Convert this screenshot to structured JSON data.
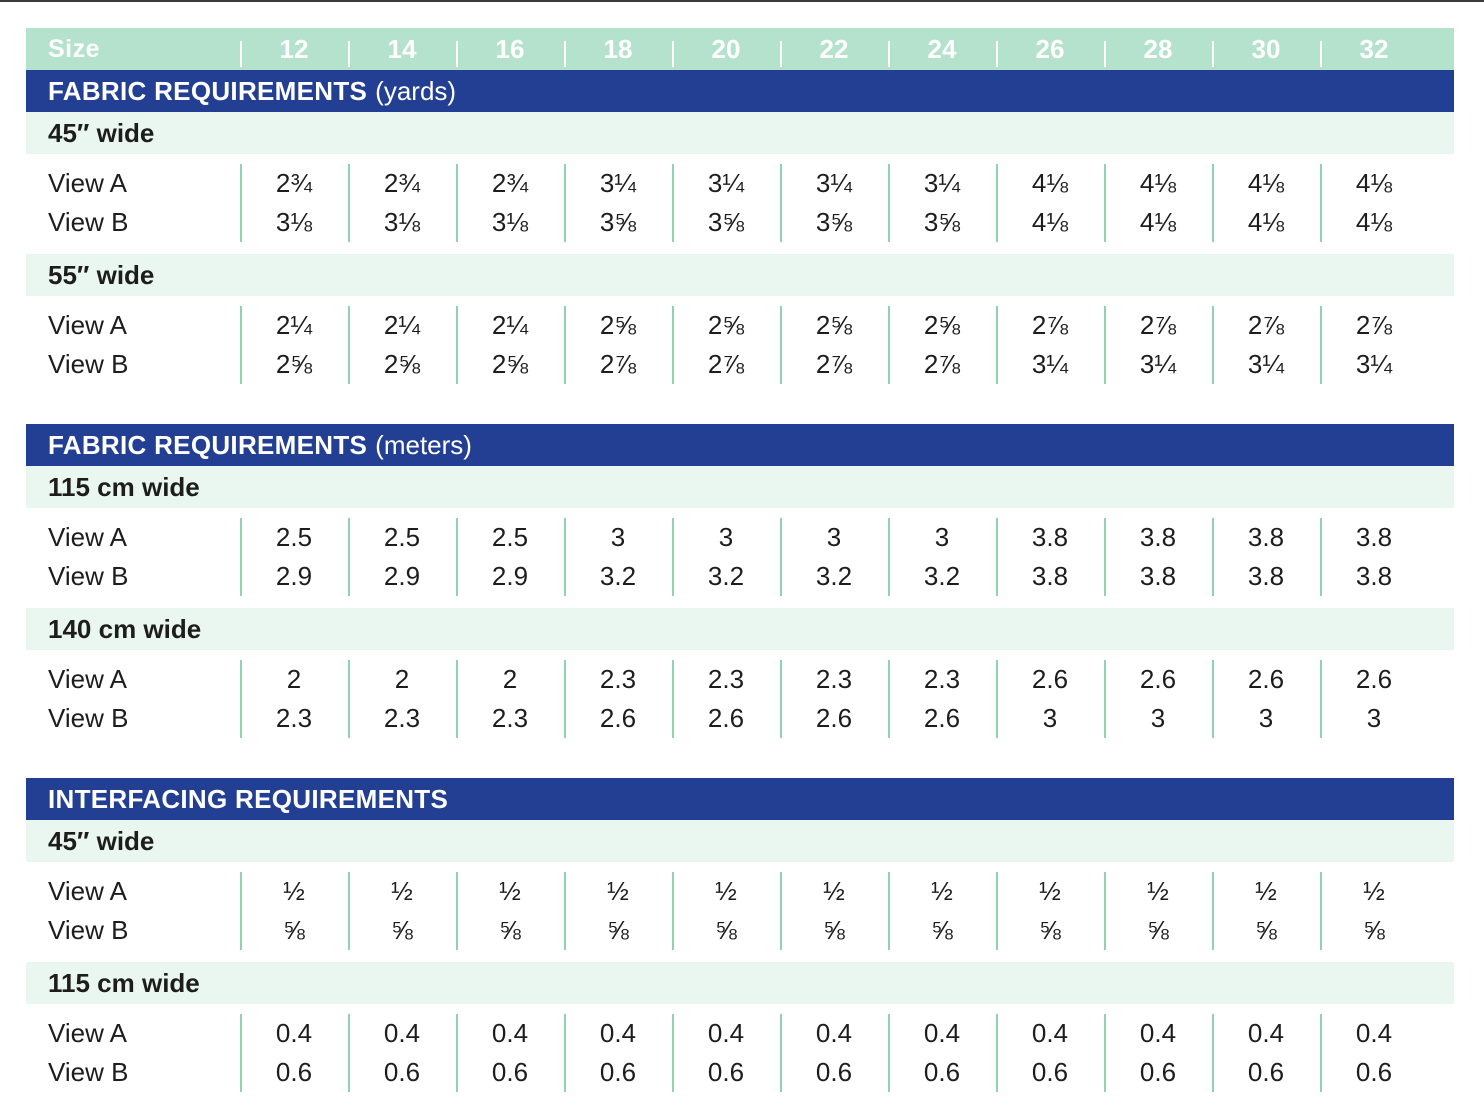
{
  "header": {
    "label": "Size",
    "sizes": [
      "12",
      "14",
      "16",
      "18",
      "20",
      "22",
      "24",
      "26",
      "28",
      "30",
      "32"
    ]
  },
  "sections": [
    {
      "title": "FABRIC REQUIREMENTS",
      "unit": "(yards)",
      "groups": [
        {
          "title": "45″ wide",
          "rows": [
            {
              "label": "View A",
              "values": [
                "2¾",
                "2¾",
                "2¾",
                "3¼",
                "3¼",
                "3¼",
                "3¼",
                "4⅛",
                "4⅛",
                "4⅛",
                "4⅛"
              ]
            },
            {
              "label": "View B",
              "values": [
                "3⅛",
                "3⅛",
                "3⅛",
                "3⅝",
                "3⅝",
                "3⅝",
                "3⅝",
                "4⅛",
                "4⅛",
                "4⅛",
                "4⅛"
              ]
            }
          ]
        },
        {
          "title": "55″ wide",
          "rows": [
            {
              "label": "View A",
              "values": [
                "2¼",
                "2¼",
                "2¼",
                "2⅝",
                "2⅝",
                "2⅝",
                "2⅝",
                "2⅞",
                "2⅞",
                "2⅞",
                "2⅞"
              ]
            },
            {
              "label": "View B",
              "values": [
                "2⅝",
                "2⅝",
                "2⅝",
                "2⅞",
                "2⅞",
                "2⅞",
                "2⅞",
                "3¼",
                "3¼",
                "3¼",
                "3¼"
              ]
            }
          ]
        }
      ]
    },
    {
      "title": "FABRIC REQUIREMENTS",
      "unit": "(meters)",
      "groups": [
        {
          "title": "115 cm wide",
          "rows": [
            {
              "label": "View A",
              "values": [
                "2.5",
                "2.5",
                "2.5",
                "3",
                "3",
                "3",
                "3",
                "3.8",
                "3.8",
                "3.8",
                "3.8"
              ]
            },
            {
              "label": "View B",
              "values": [
                "2.9",
                "2.9",
                "2.9",
                "3.2",
                "3.2",
                "3.2",
                "3.2",
                "3.8",
                "3.8",
                "3.8",
                "3.8"
              ]
            }
          ]
        },
        {
          "title": "140 cm wide",
          "rows": [
            {
              "label": "View A",
              "values": [
                "2",
                "2",
                "2",
                "2.3",
                "2.3",
                "2.3",
                "2.3",
                "2.6",
                "2.6",
                "2.6",
                "2.6"
              ]
            },
            {
              "label": "View B",
              "values": [
                "2.3",
                "2.3",
                "2.3",
                "2.6",
                "2.6",
                "2.6",
                "2.6",
                "3",
                "3",
                "3",
                "3"
              ]
            }
          ]
        }
      ]
    },
    {
      "title": "INTERFACING REQUIREMENTS",
      "unit": "",
      "groups": [
        {
          "title": "45″ wide",
          "rows": [
            {
              "label": "View A",
              "values": [
                "½",
                "½",
                "½",
                "½",
                "½",
                "½",
                "½",
                "½",
                "½",
                "½",
                "½"
              ]
            },
            {
              "label": "View B",
              "values": [
                "⅝",
                "⅝",
                "⅝",
                "⅝",
                "⅝",
                "⅝",
                "⅝",
                "⅝",
                "⅝",
                "⅝",
                "⅝"
              ]
            }
          ]
        },
        {
          "title": "115 cm wide",
          "rows": [
            {
              "label": "View A",
              "values": [
                "0.4",
                "0.4",
                "0.4",
                "0.4",
                "0.4",
                "0.4",
                "0.4",
                "0.4",
                "0.4",
                "0.4",
                "0.4"
              ]
            },
            {
              "label": "View B",
              "values": [
                "0.6",
                "0.6",
                "0.6",
                "0.6",
                "0.6",
                "0.6",
                "0.6",
                "0.6",
                "0.6",
                "0.6",
                "0.6"
              ]
            }
          ]
        }
      ]
    }
  ],
  "colors": {
    "header_bg": "#b5e2cd",
    "section_bg": "#223f93",
    "subsection_bg": "#eaf7f0",
    "divider": "#8fd2b4"
  }
}
